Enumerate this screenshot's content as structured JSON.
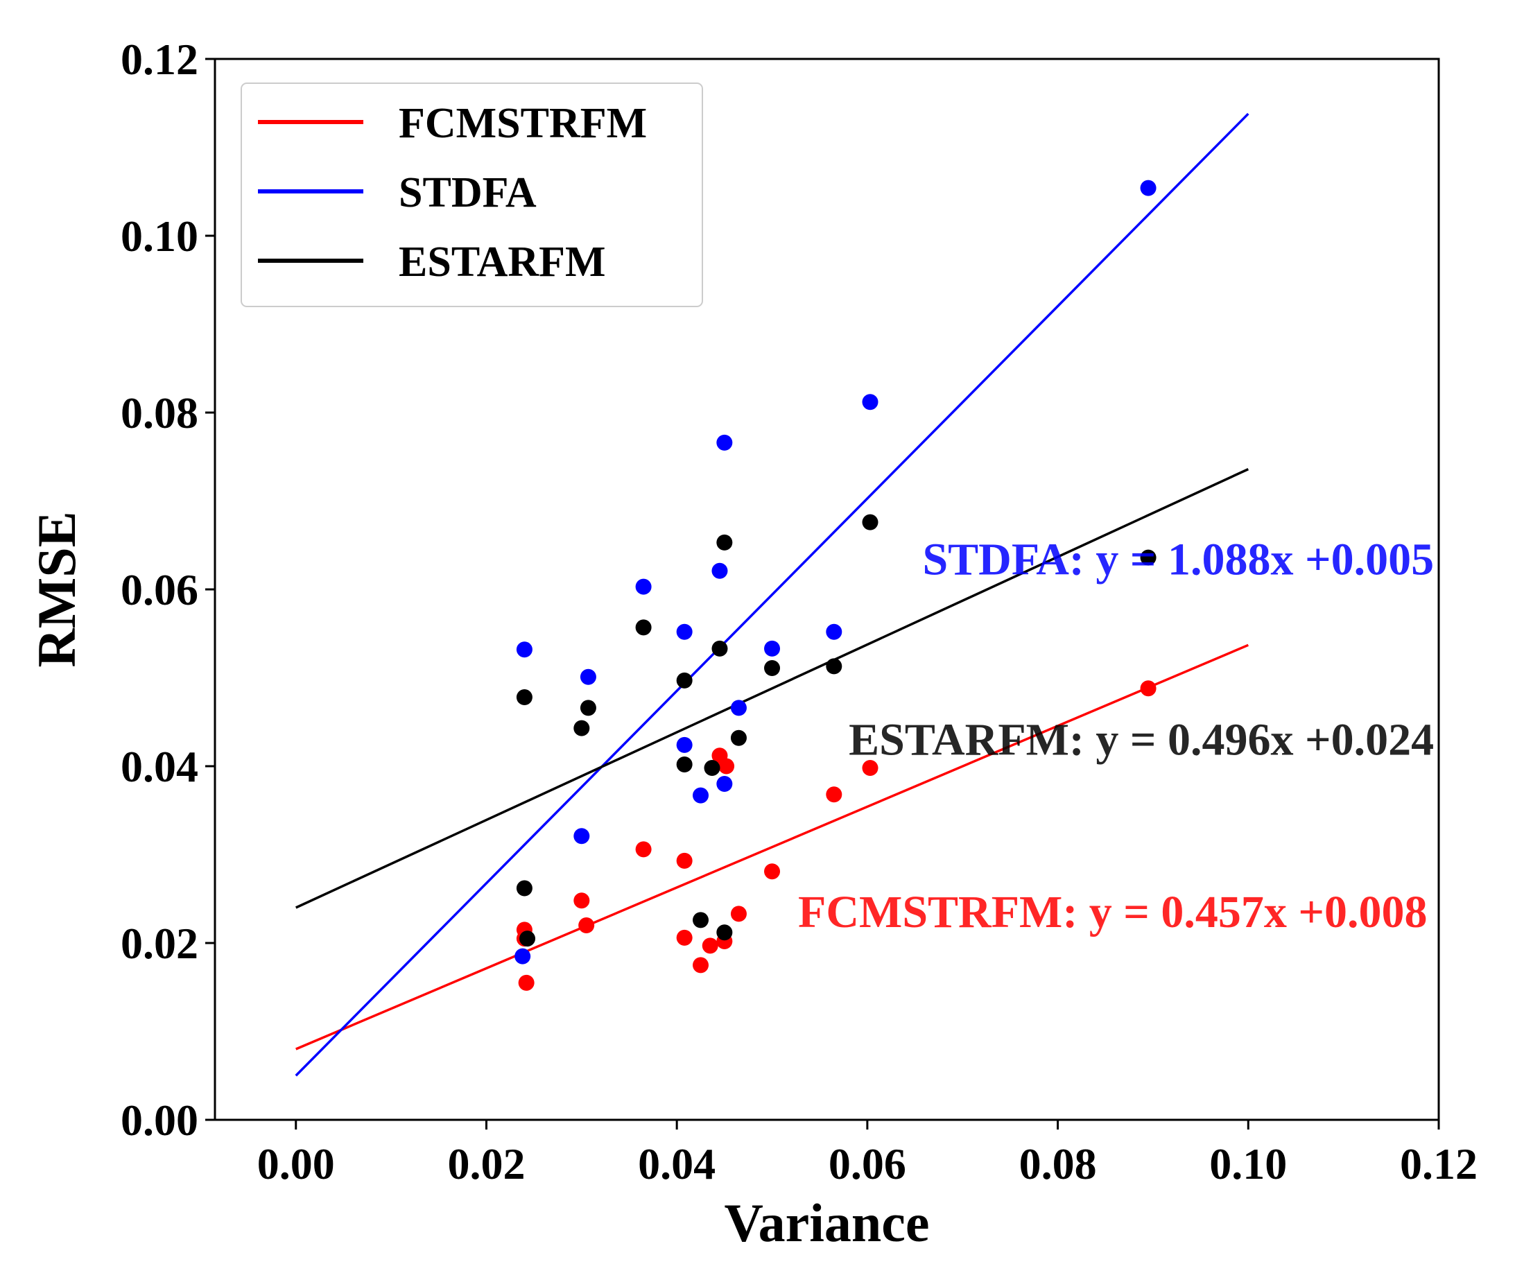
{
  "chart_data": {
    "type": "scatter",
    "title": "",
    "xlabel": "Variance",
    "ylabel": "RMSE",
    "xlim": [
      -0.0085,
      0.12
    ],
    "ylim": [
      0.0,
      0.12
    ],
    "xticks": [
      0.0,
      0.02,
      0.04,
      0.06,
      0.08,
      0.1,
      0.12
    ],
    "yticks": [
      0.0,
      0.02,
      0.04,
      0.06,
      0.08,
      0.1,
      0.12
    ],
    "xtick_labels": [
      "0.00",
      "0.02",
      "0.04",
      "0.06",
      "0.08",
      "0.10",
      "0.12"
    ],
    "ytick_labels": [
      "0.00",
      "0.02",
      "0.04",
      "0.06",
      "0.08",
      "0.10",
      "0.12"
    ],
    "grid": false,
    "legend_position": "top-left",
    "series": [
      {
        "name": "FCMSTRFM",
        "color": "#ff0000",
        "equation": "FCMSTRFM: y = 0.457x +0.008",
        "slope": 0.457,
        "intercept": 0.008,
        "fit_x_range": [
          0.0,
          0.1
        ],
        "points": [
          [
            0.024,
            0.0215
          ],
          [
            0.024,
            0.0205
          ],
          [
            0.0242,
            0.0155
          ],
          [
            0.03,
            0.0248
          ],
          [
            0.0305,
            0.022
          ],
          [
            0.0365,
            0.0306
          ],
          [
            0.0408,
            0.0293
          ],
          [
            0.0408,
            0.0206
          ],
          [
            0.0425,
            0.0175
          ],
          [
            0.0435,
            0.0197
          ],
          [
            0.0445,
            0.0412
          ],
          [
            0.045,
            0.0202
          ],
          [
            0.0452,
            0.04
          ],
          [
            0.0465,
            0.0233
          ],
          [
            0.05,
            0.0281
          ],
          [
            0.0565,
            0.0368
          ],
          [
            0.0603,
            0.0398
          ],
          [
            0.0895,
            0.0488
          ]
        ]
      },
      {
        "name": "STDFA",
        "color": "#0000ff",
        "equation": "STDFA: y = 1.088x +0.005",
        "slope": 1.088,
        "intercept": 0.005,
        "fit_x_range": [
          0.0,
          0.1
        ],
        "points": [
          [
            0.024,
            0.0532
          ],
          [
            0.0238,
            0.0185
          ],
          [
            0.03,
            0.0321
          ],
          [
            0.0307,
            0.0501
          ],
          [
            0.0365,
            0.0603
          ],
          [
            0.0408,
            0.0552
          ],
          [
            0.0408,
            0.0424
          ],
          [
            0.0425,
            0.0367
          ],
          [
            0.0445,
            0.0621
          ],
          [
            0.045,
            0.0766
          ],
          [
            0.045,
            0.038
          ],
          [
            0.0465,
            0.0466
          ],
          [
            0.05,
            0.0533
          ],
          [
            0.0565,
            0.0552
          ],
          [
            0.0603,
            0.0812
          ],
          [
            0.0895,
            0.1054
          ]
        ]
      },
      {
        "name": "ESTARFM",
        "color": "#000000",
        "equation": "ESTARFM: y = 0.496x +0.024",
        "slope": 0.496,
        "intercept": 0.024,
        "fit_x_range": [
          0.0,
          0.1
        ],
        "points": [
          [
            0.024,
            0.0262
          ],
          [
            0.0243,
            0.0205
          ],
          [
            0.024,
            0.0478
          ],
          [
            0.03,
            0.0443
          ],
          [
            0.0307,
            0.0466
          ],
          [
            0.0365,
            0.0557
          ],
          [
            0.0408,
            0.0497
          ],
          [
            0.0408,
            0.0402
          ],
          [
            0.0425,
            0.0226
          ],
          [
            0.0437,
            0.0398
          ],
          [
            0.0445,
            0.0533
          ],
          [
            0.045,
            0.0653
          ],
          [
            0.045,
            0.0212
          ],
          [
            0.0465,
            0.0432
          ],
          [
            0.05,
            0.0511
          ],
          [
            0.0565,
            0.0513
          ],
          [
            0.0603,
            0.0676
          ],
          [
            0.0895,
            0.0636
          ]
        ]
      }
    ],
    "annotations": [
      {
        "series": "STDFA",
        "text": "STDFA: y = 1.088x +0.005",
        "x": 0.1195,
        "y": 0.0617
      },
      {
        "series": "ESTARFM",
        "text": "ESTARFM: y = 0.496x +0.024",
        "x": 0.1195,
        "y": 0.0413
      },
      {
        "series": "FCMSTRFM",
        "text": "FCMSTRFM: y = 0.457x +0.008",
        "x": 0.1188,
        "y": 0.0218
      }
    ]
  }
}
